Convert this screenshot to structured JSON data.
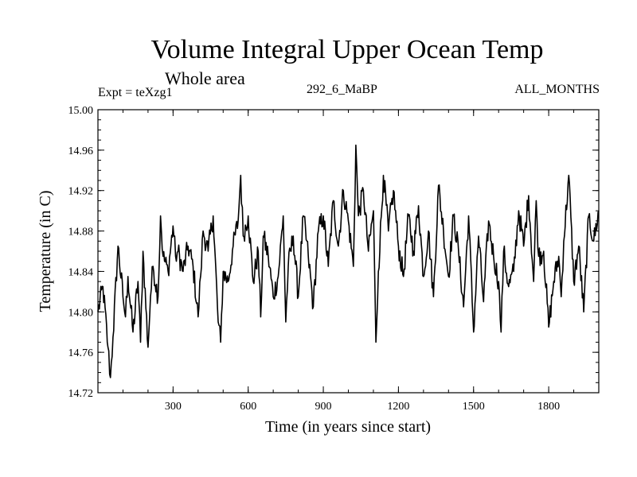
{
  "chart_data": {
    "type": "line",
    "title": "Volume Integral Upper Ocean Temp",
    "subtitle": "Whole area",
    "experiment_label": "Expt = teXzg1",
    "period_label": "292_6_MaBP",
    "months_label": "ALL_MONTHS",
    "xlabel": "Time (in years since start)",
    "ylabel": "Temperature (in C)",
    "xlim": [
      0,
      2000
    ],
    "ylim": [
      14.72,
      15.0
    ],
    "xticks": [
      300,
      600,
      900,
      1200,
      1500,
      1800
    ],
    "xtick_labels": [
      "300",
      "600",
      "900",
      "1200",
      "1500",
      "1800"
    ],
    "yticks": [
      14.72,
      14.76,
      14.8,
      14.84,
      14.88,
      14.92,
      14.96,
      15.0
    ],
    "ytick_labels": [
      "14.72",
      "14.76",
      "14.80",
      "14.84",
      "14.88",
      "14.92",
      "14.96",
      "15.00"
    ],
    "series": [
      {
        "name": "Volume integral upper ocean temperature",
        "color": "#000000",
        "x": [
          0,
          20,
          40,
          50,
          60,
          80,
          100,
          110,
          120,
          140,
          160,
          170,
          180,
          200,
          210,
          220,
          240,
          250,
          260,
          280,
          300,
          310,
          320,
          340,
          360,
          380,
          400,
          410,
          420,
          440,
          460,
          480,
          490,
          500,
          520,
          540,
          560,
          570,
          580,
          600,
          620,
          640,
          650,
          660,
          680,
          700,
          720,
          740,
          750,
          760,
          780,
          800,
          820,
          840,
          860,
          880,
          900,
          920,
          940,
          960,
          980,
          1000,
          1020,
          1030,
          1040,
          1060,
          1080,
          1100,
          1110,
          1120,
          1140,
          1160,
          1180,
          1200,
          1220,
          1240,
          1260,
          1280,
          1300,
          1320,
          1340,
          1360,
          1380,
          1400,
          1420,
          1440,
          1460,
          1480,
          1500,
          1520,
          1540,
          1560,
          1580,
          1600,
          1610,
          1620,
          1640,
          1660,
          1680,
          1700,
          1720,
          1740,
          1750,
          1760,
          1780,
          1800,
          1820,
          1840,
          1850,
          1860,
          1880,
          1900,
          1920,
          1940,
          1960,
          1980,
          2000
        ],
        "y": [
          14.8,
          14.825,
          14.765,
          14.735,
          14.775,
          14.865,
          14.815,
          14.795,
          14.835,
          14.78,
          14.83,
          14.77,
          14.86,
          14.765,
          14.815,
          14.845,
          14.815,
          14.895,
          14.855,
          14.84,
          14.885,
          14.855,
          14.86,
          14.84,
          14.865,
          14.845,
          14.795,
          14.835,
          14.88,
          14.86,
          14.895,
          14.79,
          14.77,
          14.84,
          14.83,
          14.865,
          14.89,
          14.935,
          14.875,
          14.895,
          14.83,
          14.86,
          14.795,
          14.875,
          14.855,
          14.815,
          14.835,
          14.895,
          14.79,
          14.845,
          14.875,
          14.815,
          14.895,
          14.855,
          14.805,
          14.88,
          14.895,
          14.845,
          14.91,
          14.865,
          14.92,
          14.89,
          14.845,
          14.965,
          14.895,
          14.92,
          14.86,
          14.9,
          14.77,
          14.84,
          14.935,
          14.88,
          14.92,
          14.865,
          14.835,
          14.895,
          14.86,
          14.905,
          14.835,
          14.88,
          14.815,
          14.925,
          14.88,
          14.835,
          14.895,
          14.86,
          14.805,
          14.895,
          14.78,
          14.875,
          14.81,
          14.89,
          14.855,
          14.83,
          14.78,
          14.86,
          14.825,
          14.84,
          14.9,
          14.865,
          14.915,
          14.83,
          14.91,
          14.855,
          14.86,
          14.785,
          14.83,
          14.855,
          14.815,
          14.87,
          14.935,
          14.83,
          14.865,
          14.8,
          14.895,
          14.87,
          14.9
        ]
      }
    ]
  }
}
